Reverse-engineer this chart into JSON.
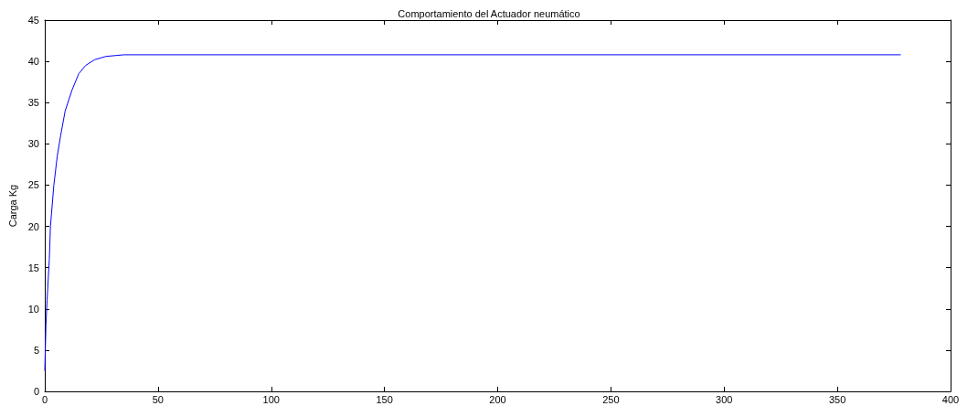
{
  "chart_data": {
    "type": "line",
    "title": "Comportamiento del Actuador neumático",
    "ylabel": "Carga Kg",
    "series": [
      {
        "color": "#0000ff",
        "x": [
          0,
          0.5,
          1,
          2,
          2.5,
          4,
          5.5,
          7,
          9,
          12,
          15,
          18,
          22,
          27,
          35,
          50,
          378
        ],
        "values": [
          2.5,
          8,
          11,
          16,
          20,
          25,
          28.5,
          31,
          34,
          36.5,
          38.5,
          39.5,
          40.2,
          40.6,
          40.8,
          40.8,
          40.8
        ]
      }
    ],
    "xlim": [
      0,
      400
    ],
    "xticks": [
      0,
      50,
      100,
      150,
      200,
      250,
      300,
      350,
      400
    ],
    "ylim": [
      0,
      45
    ],
    "yticks": [
      0,
      5,
      10,
      15,
      20,
      25,
      30,
      35,
      40,
      45
    ],
    "grid": false,
    "marker": "none",
    "line_style": "solid"
  }
}
